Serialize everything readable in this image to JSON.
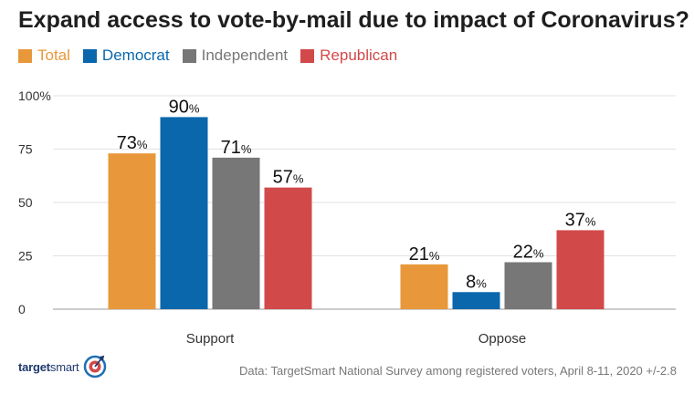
{
  "title": "Expand access to vote-by-mail due to impact of Coronavirus?",
  "source": "Data: TargetSmart National Survey among registered voters, April 8-11, 2020 +/-2.8",
  "logo": {
    "text_a": "target",
    "text_b": "smart",
    "icon": "target-icon"
  },
  "colors": {
    "Total": "#E8983A",
    "Democrat": "#0A67AC",
    "Independent": "#777777",
    "Republican": "#D2494A"
  },
  "chart_data": {
    "type": "bar",
    "categories": [
      "Support",
      "Oppose"
    ],
    "series": [
      {
        "name": "Total",
        "values": [
          73,
          21
        ]
      },
      {
        "name": "Democrat",
        "values": [
          90,
          8
        ]
      },
      {
        "name": "Independent",
        "values": [
          71,
          22
        ]
      },
      {
        "name": "Republican",
        "values": [
          57,
          37
        ]
      }
    ],
    "ylim": [
      0,
      100
    ],
    "yticks": [
      "0",
      "25",
      "50",
      "75",
      "100%"
    ],
    "value_suffix": "%",
    "grid": true,
    "legend": "top-left"
  }
}
